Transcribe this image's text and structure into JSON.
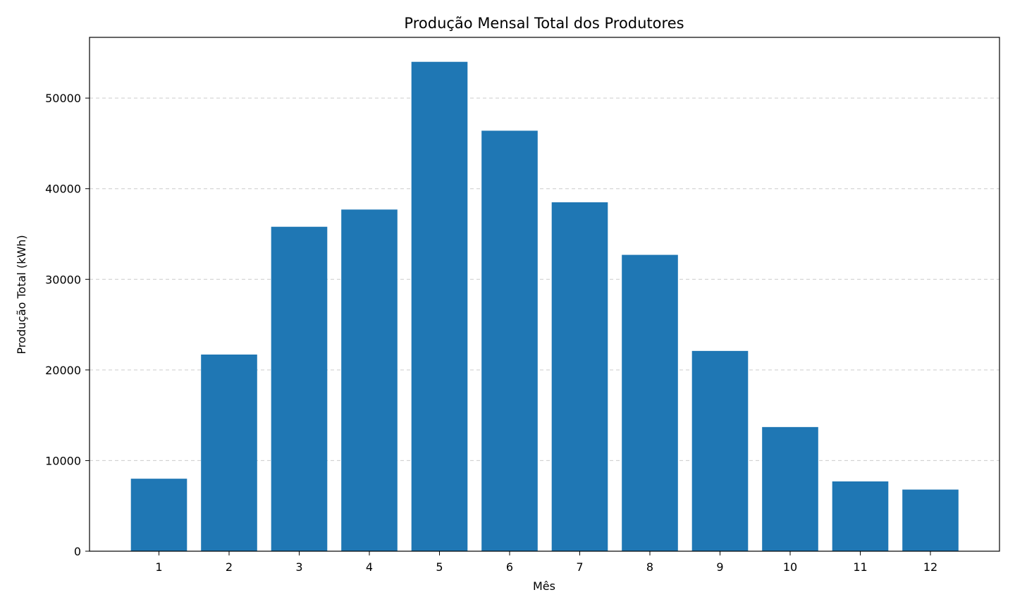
{
  "chart_data": {
    "type": "bar",
    "title": "Produção Mensal Total dos Produtores",
    "xlabel": "Mês",
    "ylabel": "Produção Total (kWh)",
    "categories": [
      "1",
      "2",
      "3",
      "4",
      "5",
      "6",
      "7",
      "8",
      "9",
      "10",
      "11",
      "12"
    ],
    "values": [
      8000,
      21700,
      35800,
      37700,
      54000,
      46400,
      38500,
      32700,
      22100,
      13700,
      7700,
      6800
    ],
    "ylim": [
      0,
      56700
    ],
    "yticks": [
      0,
      10000,
      20000,
      30000,
      40000,
      50000
    ],
    "grid": "y-dashed",
    "legend": "none",
    "colors": {
      "bar": "#1f77b4",
      "grid": "#cccccc",
      "axis": "#000000"
    }
  }
}
